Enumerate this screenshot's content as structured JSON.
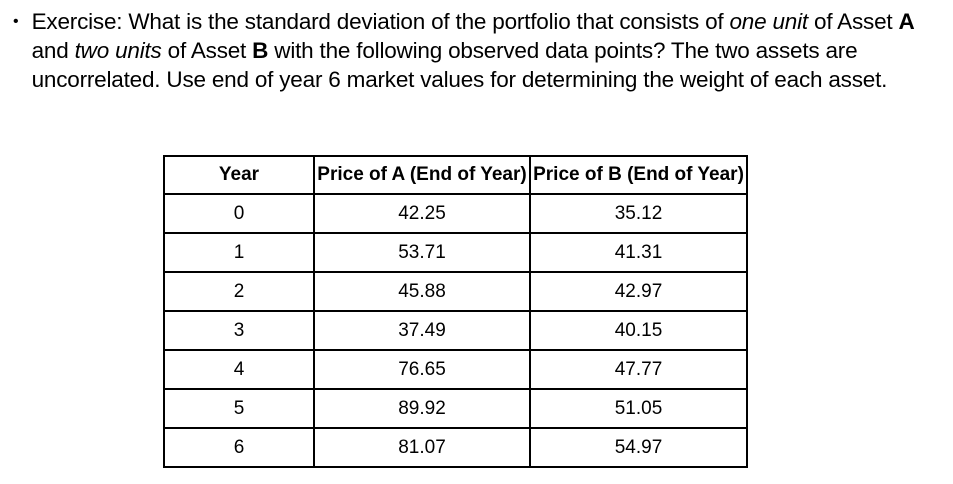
{
  "page": {
    "background": "#ffffff",
    "text_color": "#000000",
    "table_border_color": "#000000"
  },
  "exercise": {
    "bullet_marker": "•",
    "segments": [
      {
        "text": "Exercise: What is the standard deviation of the portfolio that consists of ",
        "style": "normal"
      },
      {
        "text": "one unit",
        "style": "italic"
      },
      {
        "text": " of Asset ",
        "style": "normal"
      },
      {
        "text": "A",
        "style": "bold"
      },
      {
        "text": " and ",
        "style": "normal"
      },
      {
        "text": "two units",
        "style": "italic"
      },
      {
        "text": " of Asset ",
        "style": "normal"
      },
      {
        "text": "B",
        "style": "bold"
      },
      {
        "text": " with the following observed data points? The two assets are uncorrelated. Use end of year 6 market values for determining the weight of each asset.",
        "style": "normal"
      }
    ]
  },
  "table": {
    "columns": [
      "Year",
      "Price of A (End of Year)",
      "Price of B (End of Year)"
    ],
    "rows": [
      [
        "0",
        "42.25",
        "35.12"
      ],
      [
        "1",
        "53.71",
        "41.31"
      ],
      [
        "2",
        "45.88",
        "42.97"
      ],
      [
        "3",
        "37.49",
        "40.15"
      ],
      [
        "4",
        "76.65",
        "47.77"
      ],
      [
        "5",
        "89.92",
        "51.05"
      ],
      [
        "6",
        "81.07",
        "54.97"
      ]
    ]
  }
}
